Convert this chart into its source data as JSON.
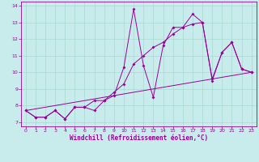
{
  "xlabel": "Windchill (Refroidissement éolien,°C)",
  "background_color": "#c8ecec",
  "line_color": "#990099",
  "xlim": [
    -0.5,
    23.5
  ],
  "ylim": [
    6.75,
    14.25
  ],
  "xticks": [
    0,
    1,
    2,
    3,
    4,
    5,
    6,
    7,
    8,
    9,
    10,
    11,
    12,
    13,
    14,
    15,
    16,
    17,
    18,
    19,
    20,
    21,
    22,
    23
  ],
  "yticks": [
    7,
    8,
    9,
    10,
    11,
    12,
    13,
    14
  ],
  "series1_x": [
    0,
    1,
    2,
    3,
    4,
    5,
    6,
    7,
    8,
    9,
    10,
    11,
    12,
    13,
    14,
    15,
    16,
    17,
    18,
    19,
    20,
    21,
    22,
    23
  ],
  "series1_y": [
    7.7,
    7.3,
    7.3,
    7.7,
    7.2,
    7.9,
    7.9,
    8.3,
    8.3,
    8.6,
    10.3,
    13.8,
    10.4,
    8.5,
    11.6,
    12.7,
    12.7,
    13.5,
    13.0,
    9.5,
    11.2,
    11.8,
    10.2,
    10.0
  ],
  "series2_x": [
    0,
    1,
    2,
    3,
    4,
    5,
    6,
    7,
    8,
    9,
    10,
    11,
    12,
    13,
    14,
    15,
    16,
    17,
    18,
    19,
    20,
    21,
    22,
    23
  ],
  "series2_y": [
    7.7,
    7.3,
    7.3,
    7.7,
    7.2,
    7.9,
    7.9,
    7.7,
    8.3,
    8.8,
    9.3,
    10.5,
    11.0,
    11.5,
    11.8,
    12.3,
    12.7,
    12.9,
    13.0,
    9.6,
    11.2,
    11.8,
    10.2,
    10.0
  ],
  "series3_x": [
    0,
    23
  ],
  "series3_y": [
    7.7,
    10.0
  ],
  "grid_color": "#a8d8d0",
  "marker": "D",
  "markersize": 2.0,
  "linewidth": 0.7
}
